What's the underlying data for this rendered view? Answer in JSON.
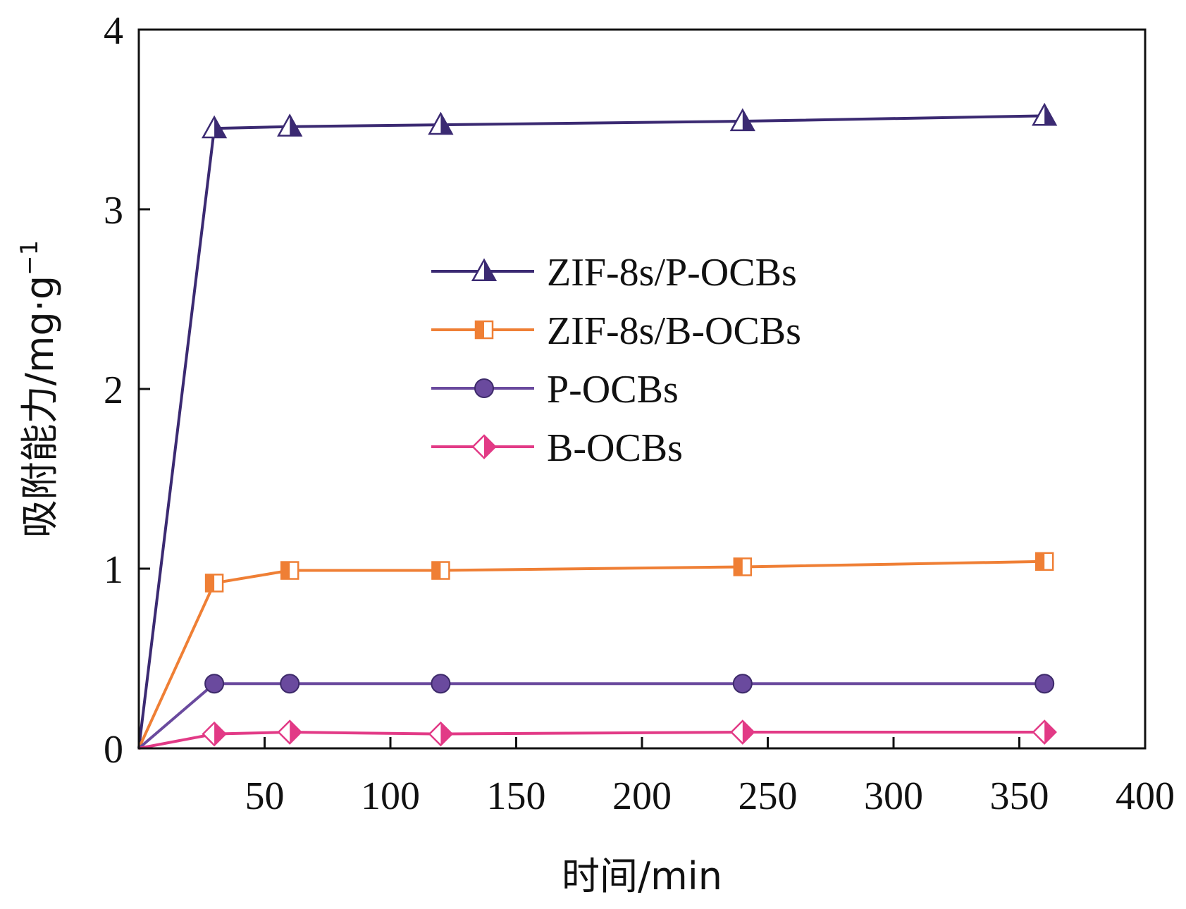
{
  "chart_data": {
    "type": "line",
    "xlabel": "时间/min",
    "ylabel": "吸附能力/mg·g",
    "ylabel_sup": "−1",
    "xlim": [
      0,
      400
    ],
    "ylim": [
      0,
      4
    ],
    "xticks": [
      50,
      100,
      150,
      200,
      250,
      300,
      350,
      400
    ],
    "yticks": [
      0,
      1,
      2,
      3,
      4
    ],
    "grid": false,
    "legend_position": "center",
    "x": [
      0,
      30,
      60,
      120,
      240,
      360
    ],
    "series": [
      {
        "name": "ZIF-8s/P-OCBs",
        "color": "#3b2a72",
        "marker": "triangle",
        "values": [
          0,
          3.45,
          3.46,
          3.47,
          3.49,
          3.52
        ]
      },
      {
        "name": "ZIF-8s/B-OCBs",
        "color": "#ef7f35",
        "marker": "square",
        "values": [
          0,
          0.92,
          0.99,
          0.99,
          1.01,
          1.04
        ]
      },
      {
        "name": "P-OCBs",
        "color": "#6a4a9e",
        "marker": "circle",
        "values": [
          0,
          0.36,
          0.36,
          0.36,
          0.36,
          0.36
        ]
      },
      {
        "name": "B-OCBs",
        "color": "#e23a86",
        "marker": "diamond",
        "values": [
          0,
          0.08,
          0.09,
          0.08,
          0.09,
          0.09
        ]
      }
    ]
  }
}
